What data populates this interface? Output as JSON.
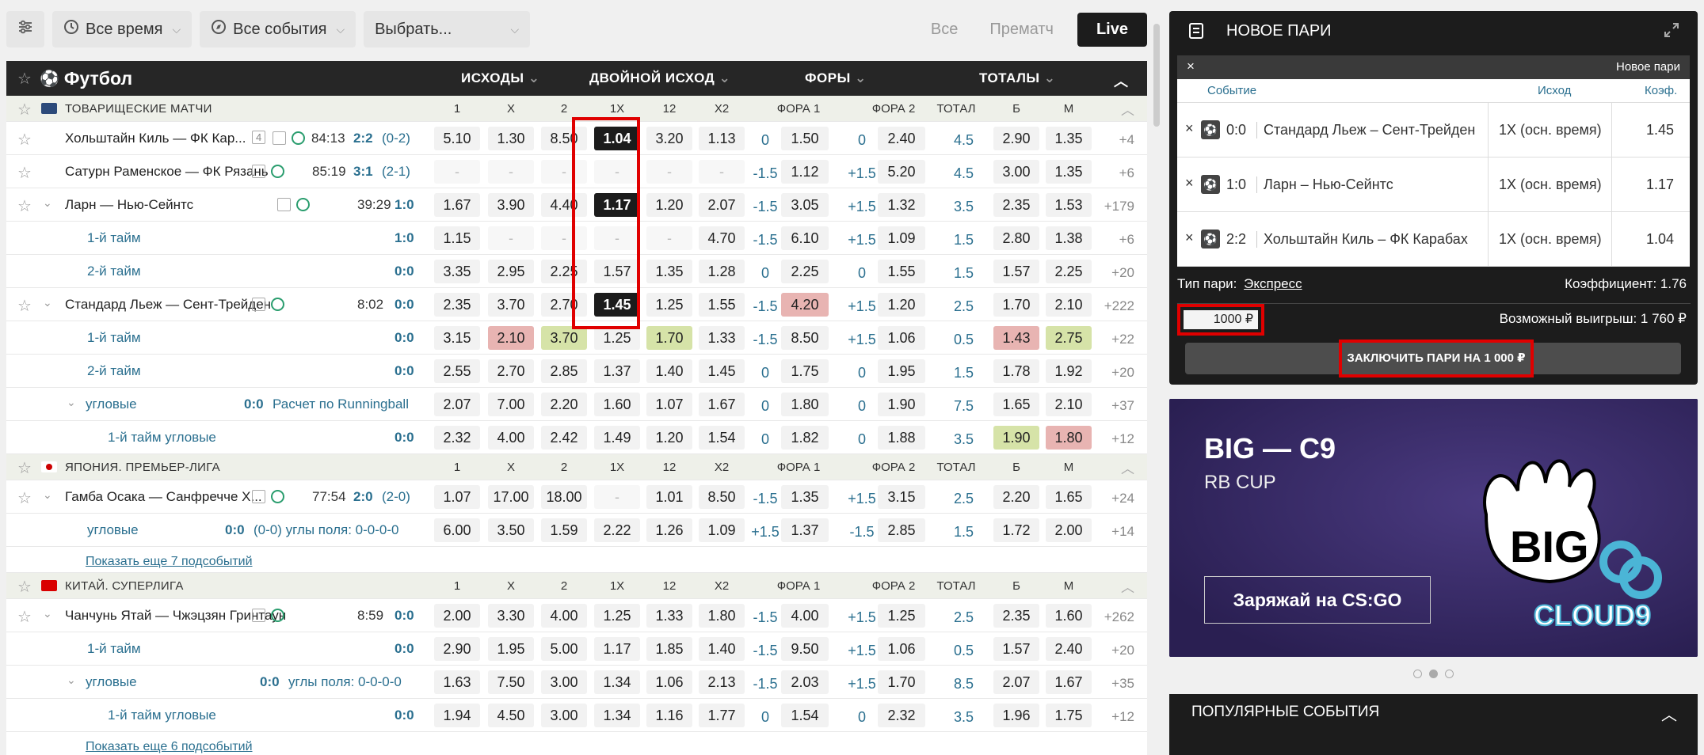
{
  "filters": {
    "time": "Все время",
    "events": "Все события",
    "select": "Выбрать...",
    "tabs": [
      "Все",
      "Прематч",
      "Live"
    ]
  },
  "sport": {
    "title": "Футбол",
    "columns": [
      "ИСХОДЫ",
      "ДВОЙНОЙ ИСХОД",
      "ФОРЫ",
      "ТОТАЛЫ"
    ]
  },
  "col_headers": [
    "1",
    "X",
    "2",
    "1X",
    "12",
    "X2",
    "ФОРА 1",
    "ФОРА 2",
    "ТОТАЛ",
    "Б",
    "М"
  ],
  "rows": [
    {
      "type": "league",
      "name": "ТОВАРИЩЕСКИЕ МАТЧИ"
    },
    {
      "type": "match",
      "name": "Хольштайн Киль — ФК Кар...",
      "badge": "4",
      "time": "84:13",
      "score": "2:2",
      "extra": "(0-2)",
      "odds": [
        "5.10",
        "1.30",
        "8.50",
        "1.04",
        "3.20",
        "1.13"
      ],
      "h1": "0",
      "h1o": "1.50",
      "h2": "0",
      "h2o": "2.40",
      "total": "4.5",
      "b": "2.90",
      "m": "1.35",
      "more": "+4",
      "sel": [
        3
      ]
    },
    {
      "type": "match",
      "name": "Сатурн Раменское — ФК Рязань",
      "time": "85:19",
      "score": "3:1",
      "extra": "(2-1)",
      "odds": [
        "-",
        "-",
        "-",
        "-",
        "-",
        "-"
      ],
      "h1": "-1.5",
      "h1o": "1.12",
      "h2": "+1.5",
      "h2o": "5.20",
      "total": "4.5",
      "b": "3.00",
      "m": "1.35",
      "more": "+6"
    },
    {
      "type": "match",
      "name": "Ларн — Нью-Сейнтс",
      "caret": true,
      "time": "39:29",
      "score": "1:0",
      "odds": [
        "1.67",
        "3.90",
        "4.40",
        "1.17",
        "1.20",
        "2.07"
      ],
      "h1": "-1.5",
      "h1o": "3.05",
      "h2": "+1.5",
      "h2o": "1.32",
      "total": "3.5",
      "b": "2.35",
      "m": "1.53",
      "more": "+179",
      "sel": [
        3
      ]
    },
    {
      "type": "sub",
      "name": "1-й тайм",
      "score": "1:0",
      "odds": [
        "1.15",
        "-",
        "-",
        "-",
        "-",
        "4.70"
      ],
      "h1": "-1.5",
      "h1o": "6.10",
      "h2": "+1.5",
      "h2o": "1.09",
      "total": "1.5",
      "b": "2.80",
      "m": "1.38",
      "more": "+6"
    },
    {
      "type": "sub",
      "name": "2-й тайм",
      "score": "0:0",
      "odds": [
        "3.35",
        "2.95",
        "2.25",
        "1.57",
        "1.35",
        "1.28"
      ],
      "h1": "0",
      "h1o": "2.25",
      "h2": "0",
      "h2o": "1.55",
      "total": "1.5",
      "b": "1.57",
      "m": "2.25",
      "more": "+20"
    },
    {
      "type": "match",
      "name": "Стандард Льеж — Сент-Трейден",
      "caret": true,
      "time": "8:02",
      "score": "0:0",
      "odds": [
        "2.35",
        "3.70",
        "2.70",
        "1.45",
        "1.25",
        "1.55"
      ],
      "h1": "-1.5",
      "h1o": "4.20",
      "h2": "+1.5",
      "h2o": "1.20",
      "total": "2.5",
      "b": "1.70",
      "m": "2.10",
      "more": "+222",
      "sel": [
        3
      ],
      "h1red": true
    },
    {
      "type": "sub",
      "name": "1-й тайм",
      "score": "0:0",
      "odds": [
        "3.15",
        "2.10",
        "3.70",
        "1.25",
        "1.70",
        "1.33"
      ],
      "h1": "-1.5",
      "h1o": "8.50",
      "h2": "+1.5",
      "h2o": "1.06",
      "total": "0.5",
      "b": "1.43",
      "m": "2.75",
      "more": "+22",
      "red": [
        1
      ],
      "grn": [
        2,
        4
      ],
      "bred": true,
      "mgrn": true
    },
    {
      "type": "sub",
      "name": "2-й тайм",
      "score": "0:0",
      "odds": [
        "2.55",
        "2.70",
        "2.85",
        "1.37",
        "1.40",
        "1.45"
      ],
      "h1": "0",
      "h1o": "1.75",
      "h2": "0",
      "h2o": "1.95",
      "total": "1.5",
      "b": "1.78",
      "m": "1.92",
      "more": "+20"
    },
    {
      "type": "sub",
      "name": "угловые",
      "caret": true,
      "score": "0:0",
      "note": "Расчет по Runningball",
      "odds": [
        "2.07",
        "7.00",
        "2.20",
        "1.60",
        "1.07",
        "1.67"
      ],
      "h1": "0",
      "h1o": "1.80",
      "h2": "0",
      "h2o": "1.90",
      "total": "7.5",
      "b": "1.65",
      "m": "2.10",
      "more": "+37"
    },
    {
      "type": "sub2",
      "name": "1-й тайм угловые",
      "score": "0:0",
      "odds": [
        "2.32",
        "4.00",
        "2.42",
        "1.49",
        "1.20",
        "1.54"
      ],
      "h1": "0",
      "h1o": "1.82",
      "h2": "0",
      "h2o": "1.88",
      "total": "3.5",
      "b": "1.90",
      "m": "1.80",
      "more": "+12",
      "bgrn": true,
      "mred": true
    },
    {
      "type": "league",
      "name": "ЯПОНИЯ. ПРЕМЬЕР-ЛИГА",
      "flag": "jp"
    },
    {
      "type": "match",
      "name": "Гамба Осака — Санфречче Х...",
      "caret": true,
      "time": "77:54",
      "score": "2:0",
      "extra": "(2-0)",
      "odds": [
        "1.07",
        "17.00",
        "18.00",
        "-",
        "1.01",
        "8.50"
      ],
      "h1": "-1.5",
      "h1o": "1.35",
      "h2": "+1.5",
      "h2o": "3.15",
      "total": "2.5",
      "b": "2.20",
      "m": "1.65",
      "more": "+24"
    },
    {
      "type": "sub",
      "name": "угловые",
      "score": "0:0",
      "note": "(0-0) углы поля: 0-0-0-0",
      "odds": [
        "6.00",
        "3.50",
        "1.59",
        "2.22",
        "1.26",
        "1.09"
      ],
      "h1": "+1.5",
      "h1o": "1.37",
      "h2": "-1.5",
      "h2o": "2.85",
      "total": "1.5",
      "b": "1.72",
      "m": "2.00",
      "more": "+14"
    },
    {
      "type": "link",
      "name": "Показать еще 7 подсобытий"
    },
    {
      "type": "league",
      "name": "КИТАЙ. СУПЕРЛИГА",
      "flag": "cn"
    },
    {
      "type": "match",
      "name": "Чанчунь Ятай — Чжэцзян Гринтаун",
      "caret": true,
      "time": "8:59",
      "score": "0:0",
      "odds": [
        "2.00",
        "3.30",
        "4.00",
        "1.25",
        "1.33",
        "1.80"
      ],
      "h1": "-1.5",
      "h1o": "4.00",
      "h2": "+1.5",
      "h2o": "1.25",
      "total": "2.5",
      "b": "2.35",
      "m": "1.60",
      "more": "+262"
    },
    {
      "type": "sub",
      "name": "1-й тайм",
      "score": "0:0",
      "odds": [
        "2.90",
        "1.95",
        "5.00",
        "1.17",
        "1.85",
        "1.40"
      ],
      "h1": "-1.5",
      "h1o": "9.50",
      "h2": "+1.5",
      "h2o": "1.06",
      "total": "0.5",
      "b": "1.57",
      "m": "2.40",
      "more": "+20"
    },
    {
      "type": "sub",
      "name": "угловые",
      "caret": true,
      "score": "0:0",
      "note": "углы поля: 0-0-0-0",
      "odds": [
        "1.63",
        "7.50",
        "3.00",
        "1.34",
        "1.06",
        "2.13"
      ],
      "h1": "-1.5",
      "h1o": "2.03",
      "h2": "+1.5",
      "h2o": "1.70",
      "total": "8.5",
      "b": "2.07",
      "m": "1.67",
      "more": "+35"
    },
    {
      "type": "sub2",
      "name": "1-й тайм угловые",
      "score": "0:0",
      "odds": [
        "1.94",
        "4.50",
        "3.00",
        "1.34",
        "1.16",
        "1.77"
      ],
      "h1": "0",
      "h1o": "1.54",
      "h2": "0",
      "h2o": "2.32",
      "total": "3.5",
      "b": "1.96",
      "m": "1.75",
      "more": "+12"
    },
    {
      "type": "link",
      "name": "Показать еще 6 подсобытий"
    }
  ],
  "slip": {
    "title": "НОВОЕ ПАРИ",
    "bar_label": "Новое пари",
    "headers": [
      "Событие",
      "Исход",
      "Коэф."
    ],
    "items": [
      {
        "score": "0:0",
        "event": "Стандард Льеж – Сент-Трейден",
        "outcome": "1X (осн. время)",
        "coef": "1.45"
      },
      {
        "score": "1:0",
        "event": "Ларн – Нью-Сейнтс",
        "outcome": "1X (осн. время)",
        "coef": "1.17"
      },
      {
        "score": "2:2",
        "event": "Хольштайн Киль – ФК Карабах",
        "outcome": "1X (осн. время)",
        "coef": "1.04"
      }
    ],
    "type_label": "Тип пари:",
    "type_value": "Экспресс",
    "coef_label": "Коэффициент: 1.76",
    "stake": "1000 ₽",
    "win_label": "Возможный выигрыш: 1 760 ₽",
    "submit": "ЗАКЛЮЧИТЬ ПАРИ НА 1 000 ₽"
  },
  "banner": {
    "title": "BIG — C9",
    "subtitle": "RB CUP",
    "cta": "Заряжай на CS:GO",
    "logo_big": "BIG",
    "logo_c9": "CLOUD9"
  },
  "popular": {
    "title": "ПОПУЛЯРНЫЕ СОБЫТИЯ"
  }
}
